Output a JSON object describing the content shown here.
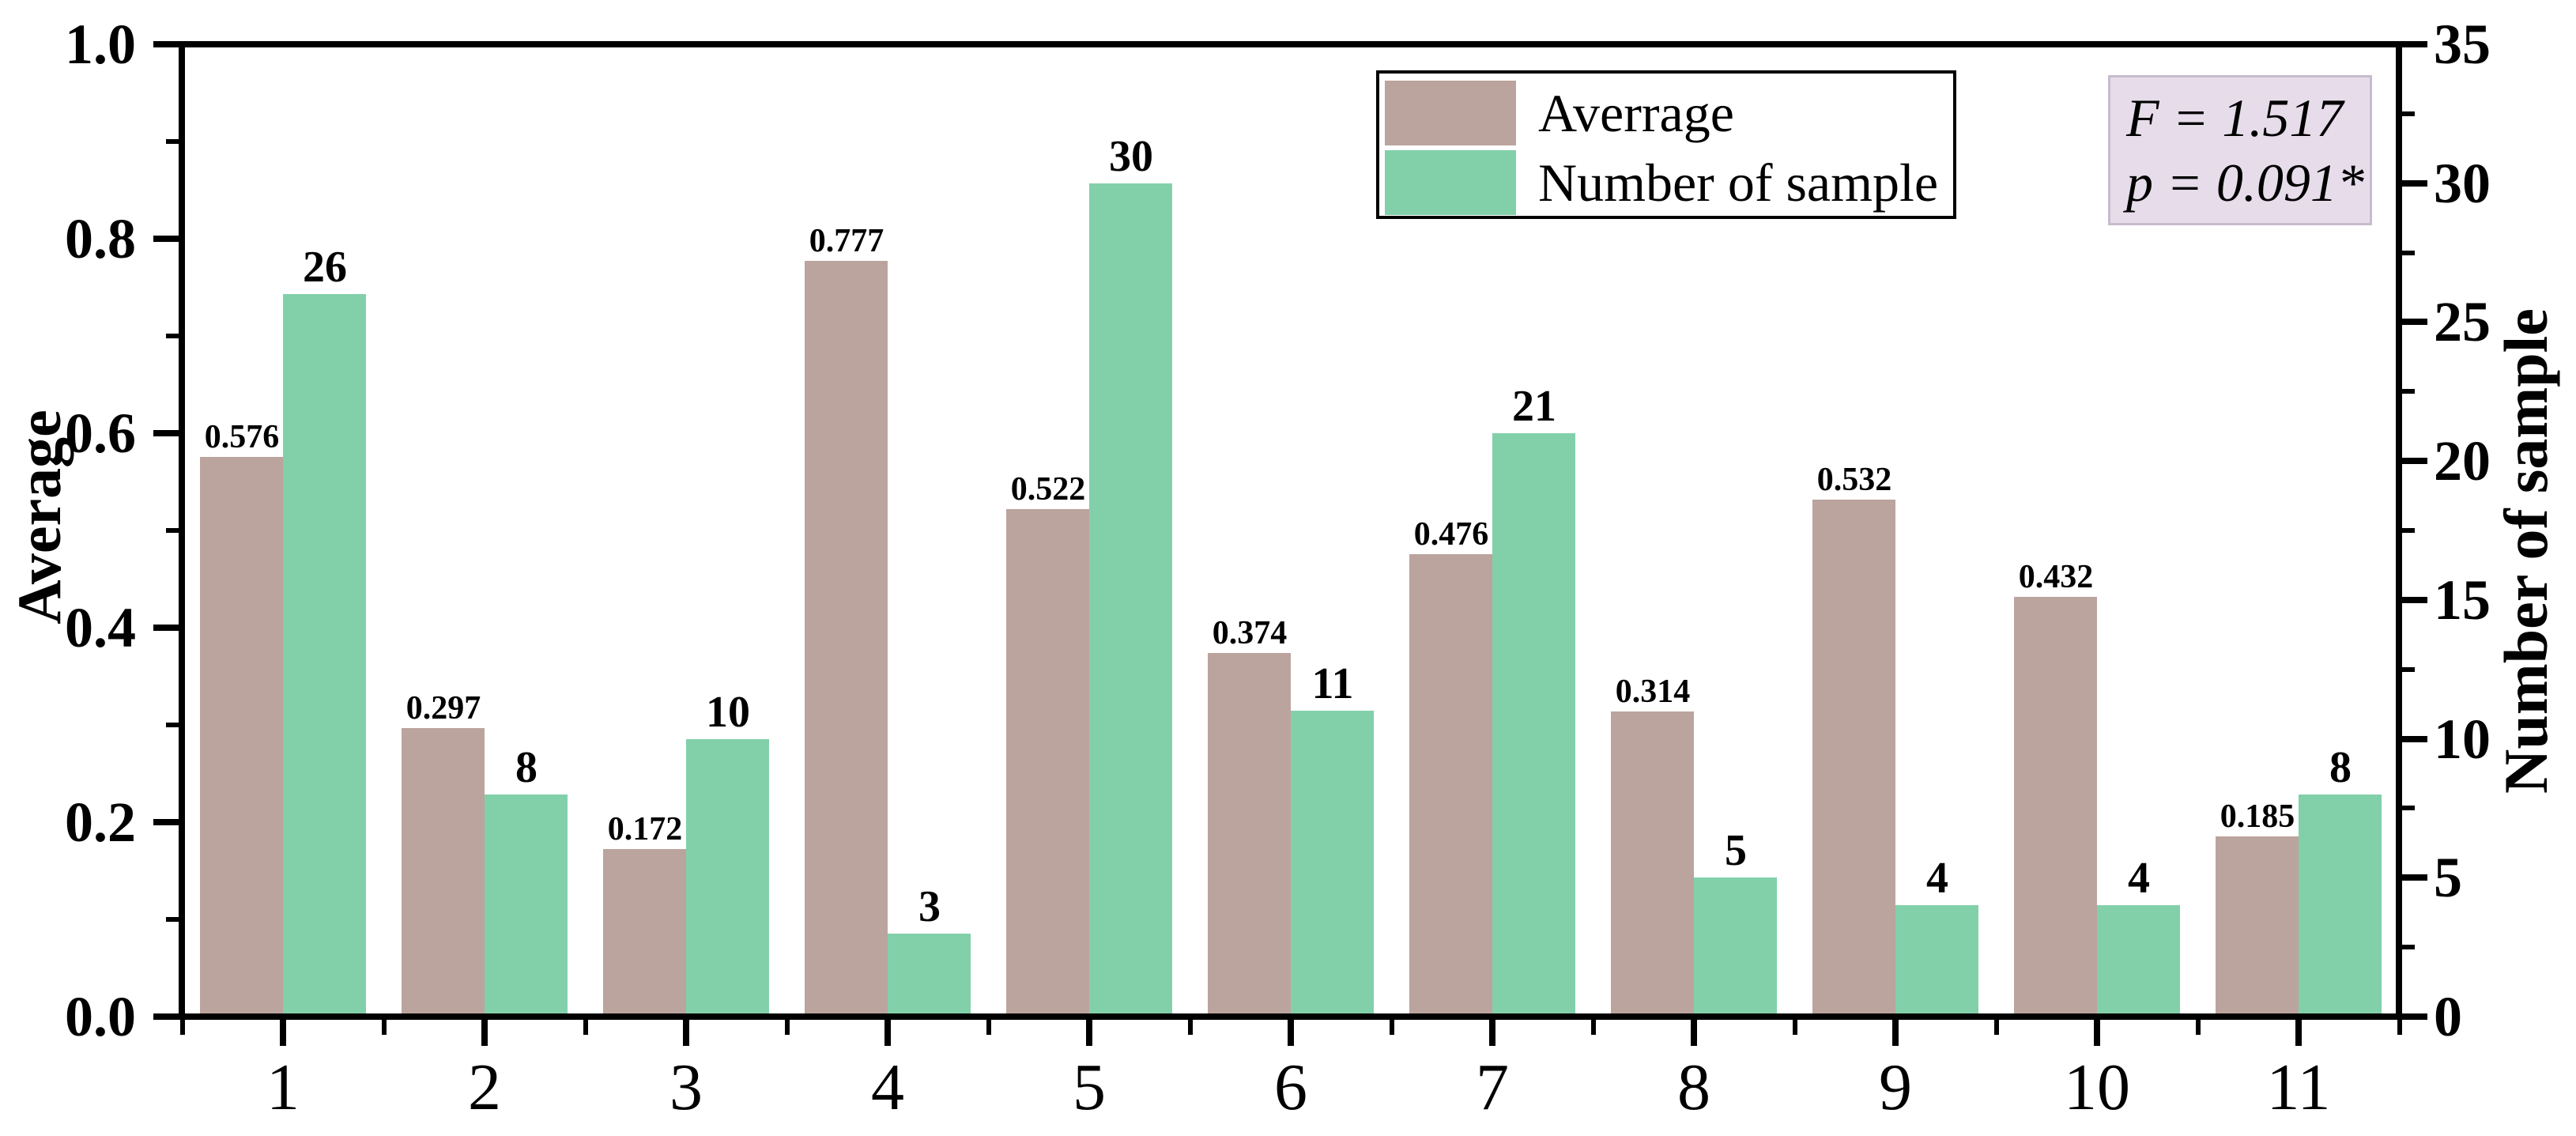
{
  "chart_data": {
    "type": "bar",
    "categories": [
      "1",
      "2",
      "3",
      "4",
      "5",
      "6",
      "7",
      "8",
      "9",
      "10",
      "11"
    ],
    "series": [
      {
        "name": "Averrage",
        "axis": "left",
        "color": "#bba49d",
        "values": [
          0.576,
          0.297,
          0.172,
          0.777,
          0.522,
          0.374,
          0.476,
          0.314,
          0.532,
          0.432,
          0.185
        ],
        "labels": [
          "0.576",
          "0.297",
          "0.172",
          "0.777",
          "0.522",
          "0.374",
          "0.476",
          "0.314",
          "0.532",
          "0.432",
          "0.185"
        ]
      },
      {
        "name": "Number of sample",
        "axis": "right",
        "color": "#82d0aa",
        "values": [
          26,
          8,
          10,
          3,
          30,
          11,
          21,
          5,
          4,
          4,
          8
        ],
        "labels": [
          "26",
          "8",
          "10",
          "3",
          "30",
          "11",
          "21",
          "5",
          "4",
          "4",
          "8"
        ]
      }
    ],
    "left_axis": {
      "title": "Average",
      "min": 0.0,
      "max": 1.0,
      "major_ticks": [
        0.0,
        0.2,
        0.4,
        0.6,
        0.8,
        1.0
      ],
      "tick_labels": [
        "0.0",
        "0.2",
        "0.4",
        "0.6",
        "0.8",
        "1.0"
      ],
      "minor_step": 0.1
    },
    "right_axis": {
      "title": "Number of sample",
      "min": 0,
      "max": 35,
      "major_ticks": [
        0,
        5,
        10,
        15,
        20,
        25,
        30,
        35
      ],
      "tick_labels": [
        "0",
        "5",
        "10",
        "15",
        "20",
        "25",
        "30",
        "35"
      ],
      "minor_step": 2.5
    },
    "legend": {
      "entries": [
        {
          "label": "Averrage",
          "color": "#bba49d"
        },
        {
          "label": "Number of sample",
          "color": "#82d0aa"
        }
      ]
    },
    "annotation": {
      "lines": [
        "F = 1.517",
        "p = 0.091*"
      ],
      "bg_color": "#e6dcea"
    },
    "grid": false,
    "legend_position": "top-center",
    "annotation_position": "top-right"
  }
}
